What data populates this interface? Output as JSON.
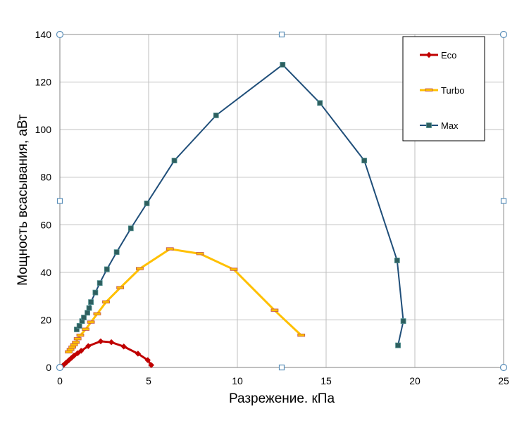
{
  "chart_data": {
    "type": "scatter",
    "xlabel": "Разрежение. кПа",
    "ylabel": "Мощность всасывания, аВт",
    "xlim": [
      0,
      25
    ],
    "ylim": [
      0,
      140
    ],
    "x_ticks": [
      0,
      5,
      10,
      15,
      20,
      25
    ],
    "y_ticks": [
      0,
      20,
      40,
      60,
      80,
      100,
      120,
      140
    ],
    "grid": true,
    "legend_position": "top-right",
    "series": [
      {
        "name": "Eco",
        "color": "#c00000",
        "marker": "diamond",
        "points": [
          [
            0,
            0
          ],
          [
            0.2,
            1
          ],
          [
            0.35,
            2
          ],
          [
            0.5,
            3
          ],
          [
            0.65,
            4
          ],
          [
            0.8,
            5
          ],
          [
            1.0,
            6
          ],
          [
            1.2,
            7
          ],
          [
            1.6,
            9
          ],
          [
            2.3,
            11
          ],
          [
            2.9,
            10.6
          ],
          [
            3.6,
            8.8
          ],
          [
            4.4,
            5.8
          ],
          [
            4.95,
            3.1
          ],
          [
            5.15,
            1
          ]
        ]
      },
      {
        "name": "Turbo",
        "color": "#ffc000",
        "marker": "dash",
        "points": [
          [
            0.5,
            6.5
          ],
          [
            0.6,
            7.5
          ],
          [
            0.7,
            8.5
          ],
          [
            0.8,
            9.5
          ],
          [
            0.9,
            10.5
          ],
          [
            1.0,
            12
          ],
          [
            1.15,
            13.5
          ],
          [
            1.45,
            16
          ],
          [
            1.75,
            19
          ],
          [
            2.1,
            22.5
          ],
          [
            2.6,
            27.5
          ],
          [
            3.4,
            33.5
          ],
          [
            4.5,
            41.5
          ],
          [
            6.2,
            49.8
          ],
          [
            7.9,
            47.8
          ],
          [
            9.8,
            41.2
          ],
          [
            12.1,
            24
          ],
          [
            13.6,
            13.5
          ]
        ]
      },
      {
        "name": "Max",
        "color": "#1f4e79",
        "marker": "square",
        "points": [
          [
            0.95,
            16
          ],
          [
            1.1,
            17.5
          ],
          [
            1.25,
            19.5
          ],
          [
            1.35,
            21
          ],
          [
            1.55,
            23
          ],
          [
            1.65,
            25
          ],
          [
            1.75,
            27.5
          ],
          [
            2.0,
            31.5
          ],
          [
            2.25,
            35.5
          ],
          [
            2.65,
            41.3
          ],
          [
            3.2,
            48.5
          ],
          [
            4.0,
            58.5
          ],
          [
            4.9,
            69
          ],
          [
            6.45,
            87
          ],
          [
            8.8,
            106
          ],
          [
            12.55,
            127.3
          ],
          [
            14.65,
            111.2
          ],
          [
            17.15,
            87
          ],
          [
            19.0,
            45
          ],
          [
            19.35,
            19.5
          ],
          [
            19.05,
            9.3
          ]
        ]
      }
    ]
  }
}
